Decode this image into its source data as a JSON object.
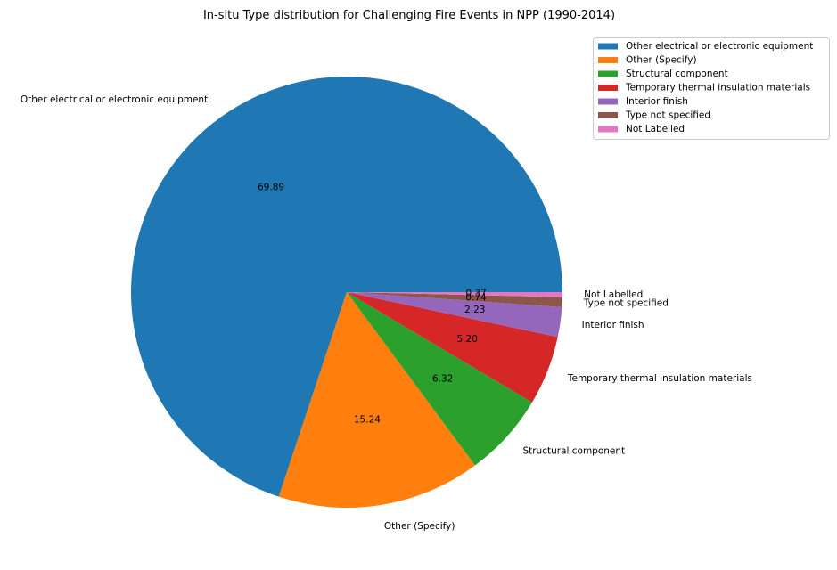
{
  "chart_data": {
    "type": "pie",
    "title": "In-situ Type distribution for Challenging Fire Events in NPP (1990-2014)",
    "categories": [
      "Other electrical or electronic equipment",
      "Other (Specify)",
      "Structural component",
      "Temporary thermal insulation materials",
      "Interior finish",
      "Type not specified",
      "Not Labelled"
    ],
    "values": [
      69.89,
      15.24,
      6.32,
      5.2,
      2.23,
      0.74,
      0.37
    ],
    "value_labels": [
      "69.89",
      "15.24",
      "6.32",
      "5.20",
      "2.23",
      "0.74",
      "0.37"
    ],
    "colors": [
      "#1f77b4",
      "#ff7f0e",
      "#2ca02c",
      "#d62728",
      "#9467bd",
      "#8c564b",
      "#e377c2"
    ],
    "start_angle_deg": 0,
    "direction": "counterclockwise",
    "legend": {
      "placement": "upper-right-outside",
      "entries": [
        "Other electrical or electronic equipment",
        "Other (Specify)",
        "Structural component",
        "Temporary thermal insulation materials",
        "Interior finish",
        "Type not specified",
        "Not Labelled"
      ]
    }
  }
}
